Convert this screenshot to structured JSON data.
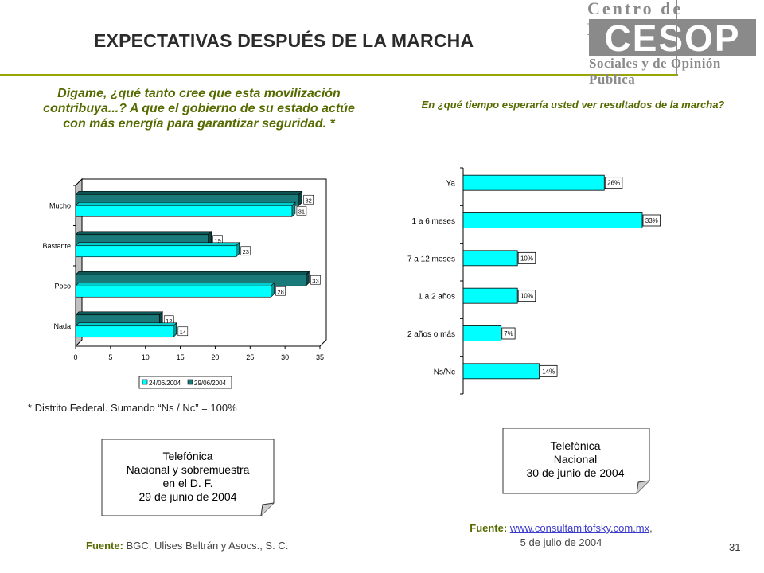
{
  "header": {
    "title": "EXPECTATIVAS DESPUÉS DE LA MARCHA",
    "logo_top": "Centro de Estudios",
    "logo_word": "CESOP",
    "logo_bottom": "Sociales y de Opinión Pública"
  },
  "left": {
    "question": "Digame, ¿qué tanto cree que esta movilización contribuya...? A que el gobierno de su estado actúe con más energía para garantizar seguridad. *",
    "footnote": "* Distrito Federal. Sumando “Ns / Nc” = 100%",
    "note_lines": [
      "Telefónica",
      "Nacional y sobremuestra",
      "en el D. F.",
      "29 de junio de 2004"
    ],
    "source_label": "Fuente:",
    "source_text": "BGC, Ulises Beltrán y Asocs., S. C."
  },
  "right": {
    "question": "En ¿qué tiempo esperaría usted ver resultados de la marcha?",
    "note_lines": [
      "Telefónica",
      "Nacional",
      "30 de junio de 2004"
    ],
    "source_label": "Fuente:",
    "source_link": "www.consultamitofsky.com.mx",
    "source_after": ",",
    "source_date": "5 de julio de 2004"
  },
  "page_number": "31",
  "colors": {
    "accent_green": "#556b00",
    "rule": "#9aa600",
    "cyan": "#00ffff",
    "teal": "#1a7a7a",
    "logo_gray": "#8a8a8a"
  },
  "chart_data": [
    {
      "type": "bar",
      "orientation": "horizontal",
      "style": "3d",
      "categories": [
        "Mucho",
        "Bastante",
        "Poco",
        "Nada"
      ],
      "series": [
        {
          "name": "24/06/2004",
          "values": [
            31,
            23,
            28,
            14
          ],
          "color": "#00ffff"
        },
        {
          "name": "29/06/2004",
          "values": [
            32,
            19,
            33,
            12
          ],
          "color": "#1a7a7a"
        }
      ],
      "xlim": [
        0,
        35
      ],
      "xticks": [
        0,
        5,
        10,
        15,
        20,
        25,
        30,
        35
      ],
      "legend": "bottom",
      "data_labels": true
    },
    {
      "type": "bar",
      "orientation": "horizontal",
      "categories": [
        "Ya",
        "1 a 6 meses",
        "7 a 12 meses",
        "1 a 2 años",
        "2 años o más",
        "Ns/Nc"
      ],
      "values": [
        26,
        33,
        10,
        10,
        7,
        14
      ],
      "value_suffix": "%",
      "color": "#00ffff",
      "data_labels": true
    }
  ]
}
